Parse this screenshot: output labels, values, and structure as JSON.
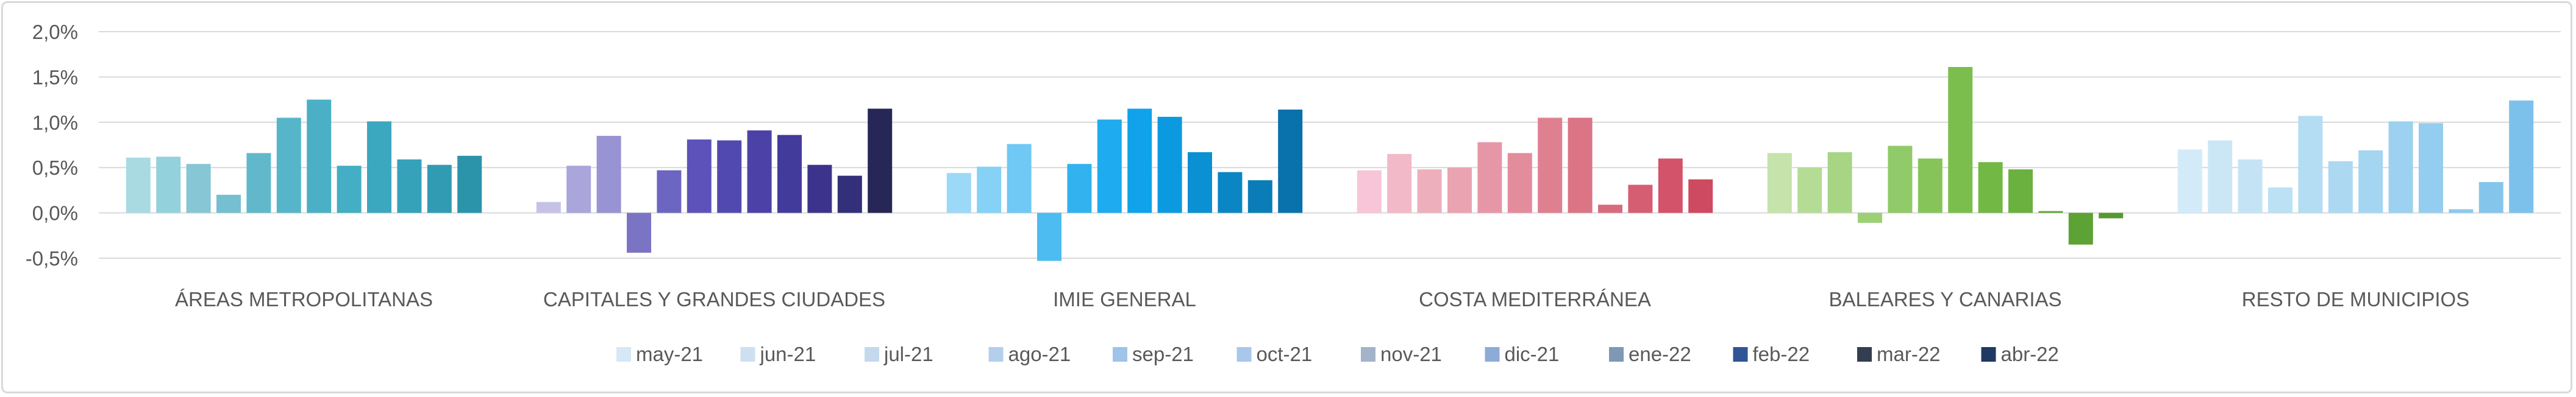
{
  "chart_data": {
    "type": "bar",
    "title": "",
    "xlabel": "",
    "ylabel": "",
    "ylim": [
      -0.005,
      0.02
    ],
    "y_ticks": [
      {
        "value": 0.02,
        "label": "2,0%"
      },
      {
        "value": 0.015,
        "label": "1,5%"
      },
      {
        "value": 0.01,
        "label": "1,0%"
      },
      {
        "value": 0.005,
        "label": "0,5%"
      },
      {
        "value": 0.0,
        "label": "0,0%"
      },
      {
        "value": -0.005,
        "label": "-0,5%"
      }
    ],
    "grid": true,
    "legend_position": "bottom",
    "series_names": [
      "may-21",
      "jun-21",
      "jul-21",
      "ago-21",
      "sep-21",
      "oct-21",
      "nov-21",
      "dic-21",
      "ene-22",
      "feb-22",
      "mar-22",
      "abr-22"
    ],
    "legend_colors": [
      "#d6e7f6",
      "#cde0f2",
      "#c4d9ee",
      "#b3cfec",
      "#9fc3ea",
      "#a9c7ea",
      "#a3b3c9",
      "#8eabd8",
      "#7e98b6",
      "#2f5597",
      "#333f50",
      "#203864"
    ],
    "groups": [
      {
        "category": "ÁREAS METROPOLITANAS",
        "values": [
          0.0061,
          0.0062,
          0.0054,
          0.002,
          0.0066,
          0.0105,
          0.0125,
          0.0052,
          0.0101,
          0.0059,
          0.0053,
          0.0063
        ],
        "colors": [
          "#a9dae2",
          "#93d1dc",
          "#86c6d5",
          "#76bfd0",
          "#62b8cb",
          "#57b5c9",
          "#4bb0c5",
          "#44aec4",
          "#3ba8bf",
          "#35a2ba",
          "#329bb4",
          "#2b93aa"
        ]
      },
      {
        "category": "CAPITALES Y GRANDES CIUDADES",
        "values": [
          0.0012,
          0.0052,
          0.0085,
          -0.0044,
          0.0047,
          0.0081,
          0.008,
          0.0091,
          0.0086,
          0.0053,
          0.0041,
          0.0115
        ],
        "colors": [
          "#c5c2e6",
          "#aaa6dc",
          "#9893d3",
          "#7b74c4",
          "#6c65c1",
          "#5d52b9",
          "#5249b0",
          "#4b41a6",
          "#433b9b",
          "#3c348c",
          "#333079",
          "#262657"
        ]
      },
      {
        "category": "IMIE GENERAL",
        "values": [
          0.0044,
          0.0051,
          0.0076,
          -0.0053,
          0.0054,
          0.0103,
          0.0115,
          0.0106,
          0.0067,
          0.0045,
          0.0036,
          0.0114
        ],
        "colors": [
          "#9cd9f8",
          "#86d1f6",
          "#70c8f4",
          "#4dbcf1",
          "#32b2ef",
          "#1eabef",
          "#10a3eb",
          "#0b9ae0",
          "#0a90d3",
          "#0a86c4",
          "#0a7db8",
          "#0971ab"
        ]
      },
      {
        "category": "COSTA MEDITERRÁNEA",
        "values": [
          0.0047,
          0.0065,
          0.0048,
          0.005,
          0.0078,
          0.0066,
          0.0105,
          0.0105,
          0.0009,
          0.0031,
          0.006,
          0.0037
        ],
        "colors": [
          "#f8c5d8",
          "#f2b9c8",
          "#eeafbc",
          "#eaa3b1",
          "#e697a7",
          "#e38c9b",
          "#df8091",
          "#db7485",
          "#d86a7d",
          "#d55e73",
          "#d2536a",
          "#cd4a60"
        ]
      },
      {
        "category": "BALEARES Y CANARIAS",
        "values": [
          0.0066,
          0.005,
          0.0067,
          -0.0011,
          0.0074,
          0.006,
          0.0161,
          0.0056,
          0.0048,
          0.0002,
          -0.0035,
          -0.0006
        ],
        "colors": [
          "#c5e3aa",
          "#b5dc94",
          "#a8d584",
          "#9ccf76",
          "#91ca68",
          "#86c45a",
          "#7cbe4d",
          "#72b845",
          "#6ab13f",
          "#63aa39",
          "#5ca234",
          "#56992f"
        ]
      },
      {
        "category": "RESTO DE MUNICIPIOS",
        "values": [
          0.007,
          0.008,
          0.0059,
          0.0028,
          0.0107,
          0.0057,
          0.0069,
          0.0101,
          0.0099,
          0.0004,
          0.0034,
          0.0124
        ],
        "colors": [
          "#d3ebf8",
          "#cbe7f6",
          "#c4e4f5",
          "#bce0f4",
          "#b4dcf3",
          "#acd8f2",
          "#a4d5f1",
          "#9cd1f0",
          "#94cdef",
          "#8cc9ee",
          "#84c5ec",
          "#7cc1eb"
        ]
      }
    ]
  }
}
